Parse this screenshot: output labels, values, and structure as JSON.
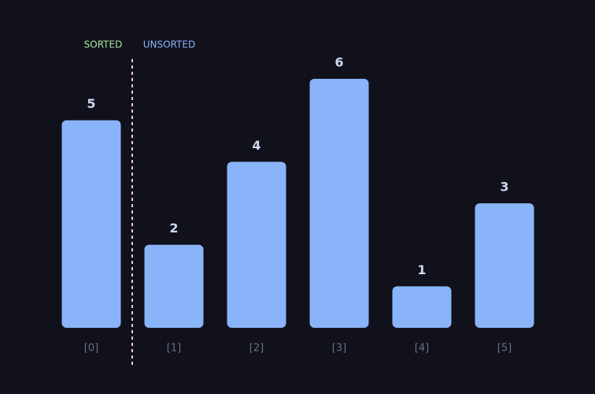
{
  "chart_data": {
    "type": "bar",
    "categories": [
      "[0]",
      "[1]",
      "[2]",
      "[3]",
      "[4]",
      "[5]"
    ],
    "values": [
      5,
      2,
      4,
      6,
      1,
      3
    ],
    "color": "#89b4fa",
    "annotations": [
      {
        "text": "SORTED",
        "color": "#a6e3a1"
      },
      {
        "text": "UNSORTED",
        "color": "#89b4fa"
      }
    ]
  }
}
